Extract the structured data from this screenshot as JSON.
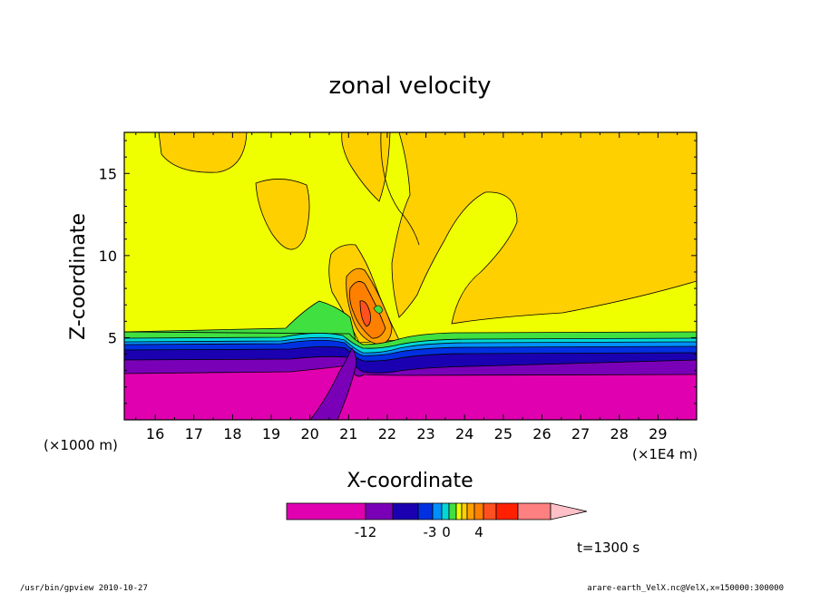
{
  "chart_data": {
    "type": "contour",
    "title": "zonal velocity",
    "xlabel": "X-coordinate",
    "ylabel": "Z-coordinate",
    "x_unit_left": "(×1000 m)",
    "x_unit_right": "(×1E4 m)",
    "x_ticks": [
      "16",
      "17",
      "18",
      "19",
      "20",
      "21",
      "22",
      "23",
      "24",
      "25",
      "26",
      "27",
      "28",
      "29"
    ],
    "y_ticks": [
      "5",
      "10",
      "15"
    ],
    "xlim": [
      15.2,
      30.0
    ],
    "ylim": [
      0.0,
      17.5
    ],
    "colorbar": {
      "colors": [
        "#e000b0",
        "#7a00b8",
        "#1a00b0",
        "#0030e0",
        "#0090ff",
        "#00d8d8",
        "#40e040",
        "#f0ff00",
        "#ffd000",
        "#ffa000",
        "#ff8000",
        "#ff5020",
        "#ff2000",
        "#ff8080",
        "#ffc0c8"
      ],
      "labels": [
        "-12",
        "-3",
        "0",
        "4"
      ]
    },
    "time_label": "t=1300 s",
    "footer_left": "/usr/bin/gpview   2010-10-27",
    "footer_right": "arare-earth_VelX.nc@VelX,x=150000:300000"
  }
}
